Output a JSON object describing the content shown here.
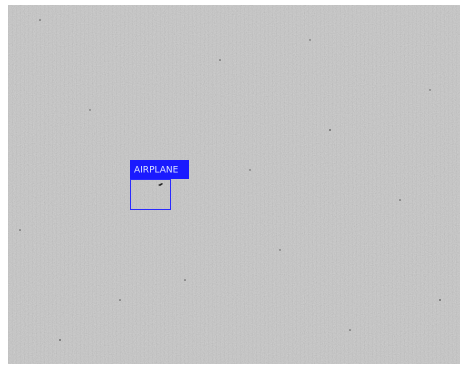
{
  "detection": {
    "label": "AIRPLANE"
  }
}
